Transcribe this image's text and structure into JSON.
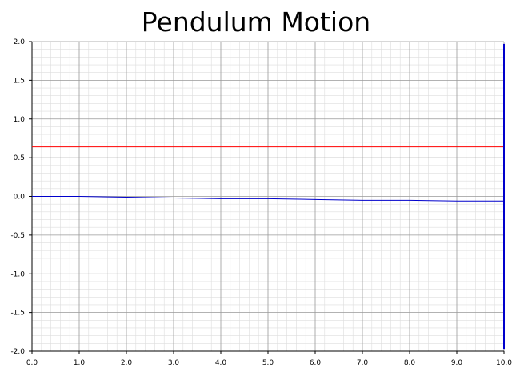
{
  "chart_data": {
    "type": "line",
    "title": "Pendulum Motion",
    "xlim": [
      0,
      10
    ],
    "ylim": [
      -2,
      2
    ],
    "x_ticks": [
      "0.0",
      "1.0",
      "2.0",
      "3.0",
      "4.0",
      "5.0",
      "6.0",
      "7.0",
      "8.0",
      "9.0",
      "10.0"
    ],
    "y_ticks": [
      "2.0",
      "1.5",
      "1.0",
      "0.5",
      "0.0",
      "-0.5",
      "-1.0",
      "-1.5",
      "-2.0"
    ],
    "grid": true,
    "series": [
      {
        "color": "#0000cc",
        "x": [
          0,
          1,
          2,
          3,
          4,
          5,
          6,
          7,
          8,
          9,
          10
        ],
        "y": [
          0.0,
          0.0,
          -0.01,
          -0.02,
          -0.03,
          -0.03,
          -0.04,
          -0.05,
          -0.05,
          -0.06,
          -0.06
        ]
      },
      {
        "color": "#ff0000",
        "x": [
          0,
          10
        ],
        "y": [
          0.64,
          0.64
        ]
      }
    ],
    "vertical_marker": {
      "x": 10,
      "y_from": -1.97,
      "y_to": 1.97,
      "color": "#0000cc"
    }
  }
}
